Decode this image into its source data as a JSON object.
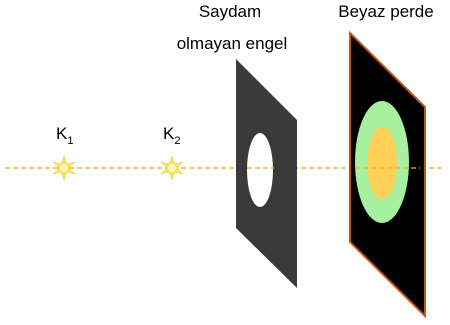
{
  "labels": {
    "source1": "K",
    "source1_sub": "1",
    "source2": "K",
    "source2_sub": "2",
    "obstacle_line1": "Saydam",
    "obstacle_line2": "olmayan engel",
    "screen": "Beyaz perde"
  },
  "colors": {
    "axis_line": "#f4b22a",
    "source_glow": "#f6e36a",
    "source_core": "#fff6b0",
    "obstacle": "#3a3a3a",
    "hole": "#ffffff",
    "screen": "#000000",
    "screen_border": "#c4541c",
    "penumbra": "#a6f0a0",
    "lit_center": "#ffd257"
  }
}
